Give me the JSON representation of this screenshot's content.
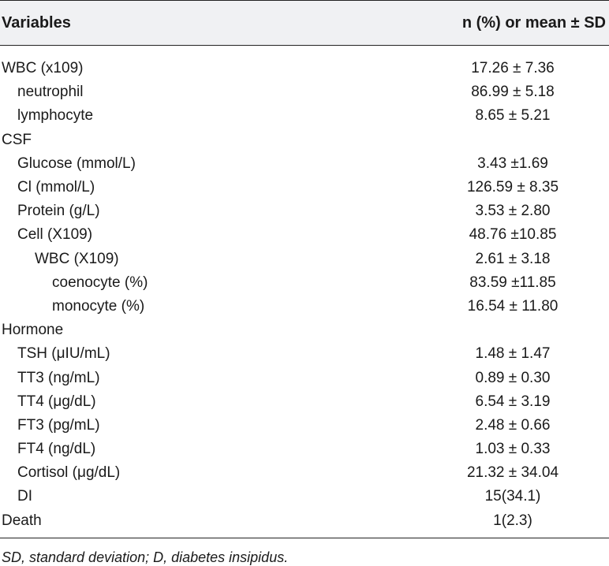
{
  "table": {
    "header": {
      "variables": "Variables",
      "values": "n (%) or mean ± SD"
    },
    "rows": [
      {
        "label": "WBC (x109)",
        "value": "17.26 ± 7.36",
        "indent": 0
      },
      {
        "label": "neutrophil",
        "value": "86.99 ± 5.18",
        "indent": 1
      },
      {
        "label": "lymphocyte",
        "value": "8.65 ± 5.21",
        "indent": 1
      },
      {
        "label": "CSF",
        "value": "",
        "indent": 0
      },
      {
        "label": "Glucose (mmol/L)",
        "value": "3.43 ±1.69",
        "indent": 1
      },
      {
        "label": "Cl (mmol/L)",
        "value": "126.59 ± 8.35",
        "indent": 1
      },
      {
        "label": "Protein (g/L)",
        "value": "3.53 ± 2.80",
        "indent": 1
      },
      {
        "label": "Cell (X109)",
        "value": "48.76 ±10.85",
        "indent": 1
      },
      {
        "label": "WBC (X109)",
        "value": "2.61 ± 3.18",
        "indent": 2
      },
      {
        "label": "coenocyte (%)",
        "value": "83.59 ±11.85",
        "indent": 3
      },
      {
        "label": "monocyte (%)",
        "value": "16.54 ± 11.80",
        "indent": 3
      },
      {
        "label": "Hormone",
        "value": "",
        "indent": 0
      },
      {
        "label": "TSH (μIU/mL)",
        "value": "1.48 ± 1.47",
        "indent": 1
      },
      {
        "label": "TT3 (ng/mL)",
        "value": "0.89 ± 0.30",
        "indent": 1
      },
      {
        "label": "TT4 (μg/dL)",
        "value": "6.54 ± 3.19",
        "indent": 1
      },
      {
        "label": "FT3 (pg/mL)",
        "value": "2.48 ± 0.66",
        "indent": 1
      },
      {
        "label": "FT4 (ng/dL)",
        "value": "1.03 ± 0.33",
        "indent": 1
      },
      {
        "label": "Cortisol (μg/dL)",
        "value": "21.32 ± 34.04",
        "indent": 1
      },
      {
        "label": "DI",
        "value": "15(34.1)",
        "indent": 1
      },
      {
        "label": "Death",
        "value": "1(2.3)",
        "indent": 0
      }
    ],
    "footnote": "SD, standard deviation; D, diabetes insipidus."
  }
}
